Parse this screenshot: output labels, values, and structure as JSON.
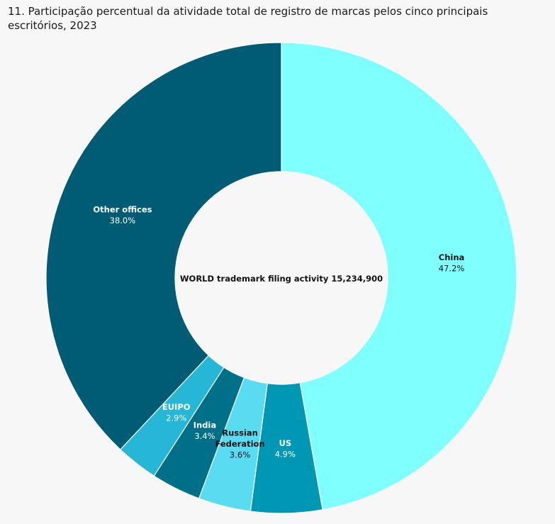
{
  "title": "11. Participação percentual da atividade total de registro de marcas pelos cinco principais escritórios, 2023",
  "center_label": "WORLD trademark filing activity 15,234,900",
  "colors": {
    "china": "#80ffff",
    "us": "#0097b4",
    "russian_federation": "#59dbf2",
    "india": "#007088",
    "euipo": "#26b6d6",
    "other": "#005c75",
    "background": "#f7f7f7"
  },
  "chart_data": {
    "type": "donut",
    "title": "11. Participação percentual da atividade total de registro de marcas pelos cinco principais escritórios, 2023",
    "total": "15,234,900",
    "slices": [
      {
        "label": [
          "China"
        ],
        "display": "47.2%",
        "value": 47.2,
        "color": "#80ffff",
        "text_color": "#111111"
      },
      {
        "label": [
          "US"
        ],
        "display": "4.9%",
        "value": 4.9,
        "color": "#0097b4",
        "text_color": "#ffffff"
      },
      {
        "label": [
          "Russian",
          "Federation"
        ],
        "display": "3.6%",
        "value": 3.6,
        "color": "#59dbf2",
        "text_color": "#111111"
      },
      {
        "label": [
          "India"
        ],
        "display": "3.4%",
        "value": 3.4,
        "color": "#007088",
        "text_color": "#ffffff"
      },
      {
        "label": [
          "EUIPO"
        ],
        "display": "2.9%",
        "value": 2.9,
        "color": "#26b6d6",
        "text_color": "#ffffff"
      },
      {
        "label": [
          "Other offices"
        ],
        "display": "38.0%",
        "value": 38.0,
        "color": "#005c75",
        "text_color": "#ffffff"
      }
    ]
  }
}
